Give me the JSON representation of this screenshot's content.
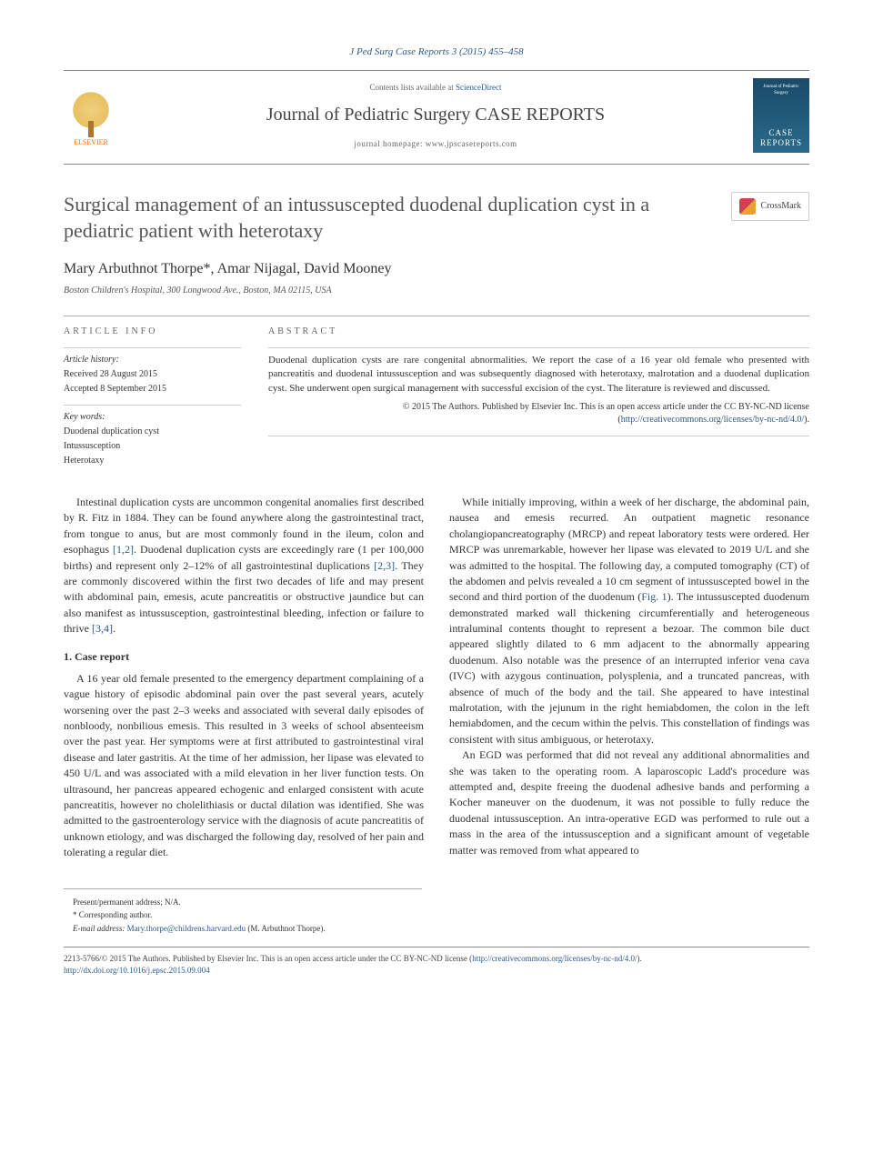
{
  "journal_ref": "J Ped Surg Case Reports 3 (2015) 455–458",
  "header": {
    "publisher": "ELSEVIER",
    "contents_line_pre": "Contents lists available at ",
    "contents_link": "ScienceDirect",
    "journal_name": "Journal of Pediatric Surgery CASE REPORTS",
    "homepage_pre": "journal homepage: ",
    "homepage_url": "www.jpscasereports.com",
    "cover_top": "Journal of Pediatric Surgery",
    "cover_case": "CASE REPORTS"
  },
  "crossmark": "CrossMark",
  "title": "Surgical management of an intussuscepted duodenal duplication cyst in a pediatric patient with heterotaxy",
  "authors": "Mary Arbuthnot Thorpe*, Amar Nijagal, David Mooney",
  "affiliation": "Boston Children's Hospital, 300 Longwood Ave., Boston, MA 02115, USA",
  "info": {
    "heading": "ARTICLE INFO",
    "history_label": "Article history:",
    "received": "Received 28 August 2015",
    "accepted": "Accepted 8 September 2015",
    "keywords_label": "Key words:",
    "kw1": "Duodenal duplication cyst",
    "kw2": "Intussusception",
    "kw3": "Heterotaxy"
  },
  "abstract": {
    "heading": "ABSTRACT",
    "text": "Duodenal duplication cysts are rare congenital abnormalities. We report the case of a 16 year old female who presented with pancreatitis and duodenal intussusception and was subsequently diagnosed with heterotaxy, malrotation and a duodenal duplication cyst. She underwent open surgical management with successful excision of the cyst. The literature is reviewed and discussed.",
    "copyright": "© 2015 The Authors. Published by Elsevier Inc. This is an open access article under the CC BY-NC-ND license (",
    "license_url": "http://creativecommons.org/licenses/by-nc-nd/4.0/",
    "license_close": ")."
  },
  "body": {
    "intro": "Intestinal duplication cysts are uncommon congenital anomalies first described by R. Fitz in 1884. They can be found anywhere along the gastrointestinal tract, from tongue to anus, but are most commonly found in the ileum, colon and esophagus ",
    "intro_cite1": "[1,2]",
    "intro2": ". Duodenal duplication cysts are exceedingly rare (1 per 100,000 births) and represent only 2–12% of all gastrointestinal duplications ",
    "intro_cite2": "[2,3]",
    "intro3": ". They are commonly discovered within the first two decades of life and may present with abdominal pain, emesis, acute pancreatitis or obstructive jaundice but can also manifest as intussusception, gastrointestinal bleeding, infection or failure to thrive ",
    "intro_cite3": "[3,4]",
    "intro4": ".",
    "section1_h": "1. Case report",
    "p1": "A 16 year old female presented to the emergency department complaining of a vague history of episodic abdominal pain over the past several years, acutely worsening over the past 2–3 weeks and associated with several daily episodes of nonbloody, nonbilious emesis. This resulted in 3 weeks of school absenteeism over the past year. Her symptoms were at first attributed to gastrointestinal viral disease and later gastritis. At the time of her admission, her lipase was elevated to 450 U/L and was associated with a mild elevation in her liver function tests. On ultrasound, her pancreas appeared echogenic and enlarged consistent with acute pancreatitis, however no cholelithiasis or ductal dilation was identified. She was admitted to the gastroenterology service with the diagnosis of acute pancreatitis of unknown etiology, and was discharged the following day, resolved of her pain and tolerating a regular diet.",
    "p2a": "While initially improving, within a week of her discharge, the abdominal pain, nausea and emesis recurred. An outpatient magnetic resonance cholangiopancreatography (MRCP) and repeat laboratory tests were ordered. Her MRCP was unremarkable, however her lipase was elevated to 2019 U/L and she was admitted to the hospital. The following day, a computed tomography (CT) of the abdomen and pelvis revealed a 10 cm segment of intussuscepted bowel in the second and third portion of the duodenum (",
    "p2_fig": "Fig. 1",
    "p2b": "). The intussuscepted duodenum demonstrated marked wall thickening circumferentially and heterogeneous intraluminal contents thought to represent a bezoar. The common bile duct appeared slightly dilated to 6 mm adjacent to the abnormally appearing duodenum. Also notable was the presence of an interrupted inferior vena cava (IVC) with azygous continuation, polysplenia, and a truncated pancreas, with absence of much of the body and the tail. She appeared to have intestinal malrotation, with the jejunum in the right hemiabdomen, the colon in the left hemiabdomen, and the cecum within the pelvis. This constellation of findings was consistent with situs ambiguous, or heterotaxy.",
    "p3": "An EGD was performed that did not reveal any additional abnormalities and she was taken to the operating room. A laparoscopic Ladd's procedure was attempted and, despite freeing the duodenal adhesive bands and performing a Kocher maneuver on the duodenum, it was not possible to fully reduce the duodenal intussusception. An intra-operative EGD was performed to rule out a mass in the area of the intussusception and a significant amount of vegetable matter was removed from what appeared to"
  },
  "footnotes": {
    "address": "Present/permanent address; N/A.",
    "corresponding": "* Corresponding author.",
    "email_label": "E-mail address: ",
    "email": "Mary.thorpe@childrens.harvard.edu",
    "email_suffix": " (M. Arbuthnot Thorpe)."
  },
  "bottom": {
    "line1a": "2213-5766/© 2015 The Authors. Published by Elsevier Inc. This is an open access article under the CC BY-NC-ND license (",
    "line1_url": "http://creativecommons.org/licenses/by-nc-nd/4.0/",
    "line1b": ").",
    "doi": "http://dx.doi.org/10.1016/j.epsc.2015.09.004"
  },
  "colors": {
    "link": "#2a5a8a",
    "text": "#333333",
    "muted": "#666666"
  }
}
